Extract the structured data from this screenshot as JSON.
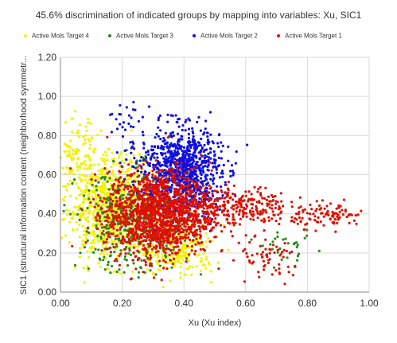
{
  "chart_data": {
    "type": "scatter",
    "title": "45.6% discrimination of indicated groups by mapping into variables: Xu, SIC1",
    "xlabel": "Xu (Xu index)",
    "ylabel": "SIC1 (structural information content (neighborhood symmetr...",
    "xlim": [
      0,
      1
    ],
    "ylim": [
      0,
      1.2
    ],
    "xticks": [
      "0.00",
      "0.20",
      "0.40",
      "0.60",
      "0.80",
      "1.00"
    ],
    "yticks": [
      "0.00",
      "0.20",
      "0.40",
      "0.60",
      "0.80",
      "1.00",
      "1.20"
    ],
    "grid": true,
    "legend_position": "top",
    "series": [
      {
        "name": "Active Mols Target 4",
        "color": "#f2f200",
        "clusters": [
          {
            "cx": 0.16,
            "cy": 0.44,
            "sx": 0.07,
            "sy": 0.13,
            "n": 900
          },
          {
            "cx": 0.38,
            "cy": 0.22,
            "sx": 0.06,
            "sy": 0.07,
            "n": 260
          },
          {
            "cx": 0.05,
            "cy": 0.7,
            "sx": 0.03,
            "sy": 0.09,
            "n": 80
          }
        ]
      },
      {
        "name": "Active Mols Target 3",
        "color": "#2b8a1e",
        "clusters": [
          {
            "cx": 0.24,
            "cy": 0.36,
            "sx": 0.09,
            "sy": 0.13,
            "n": 420
          },
          {
            "cx": 0.74,
            "cy": 0.22,
            "sx": 0.04,
            "sy": 0.04,
            "n": 30
          }
        ]
      },
      {
        "name": "Active Mols Target 2",
        "color": "#1010dd",
        "clusters": [
          {
            "cx": 0.39,
            "cy": 0.62,
            "sx": 0.065,
            "sy": 0.11,
            "n": 1000
          },
          {
            "cx": 0.2,
            "cy": 0.86,
            "sx": 0.03,
            "sy": 0.07,
            "n": 30
          }
        ]
      },
      {
        "name": "Active Mols Target 1",
        "color": "#dd1100",
        "clusters": [
          {
            "cx": 0.32,
            "cy": 0.4,
            "sx": 0.085,
            "sy": 0.11,
            "n": 1500
          },
          {
            "cx": 0.58,
            "cy": 0.44,
            "sx": 0.08,
            "sy": 0.05,
            "n": 250
          },
          {
            "cx": 0.87,
            "cy": 0.39,
            "sx": 0.06,
            "sy": 0.03,
            "n": 100
          },
          {
            "cx": 0.68,
            "cy": 0.16,
            "sx": 0.05,
            "sy": 0.06,
            "n": 60
          }
        ]
      }
    ]
  }
}
